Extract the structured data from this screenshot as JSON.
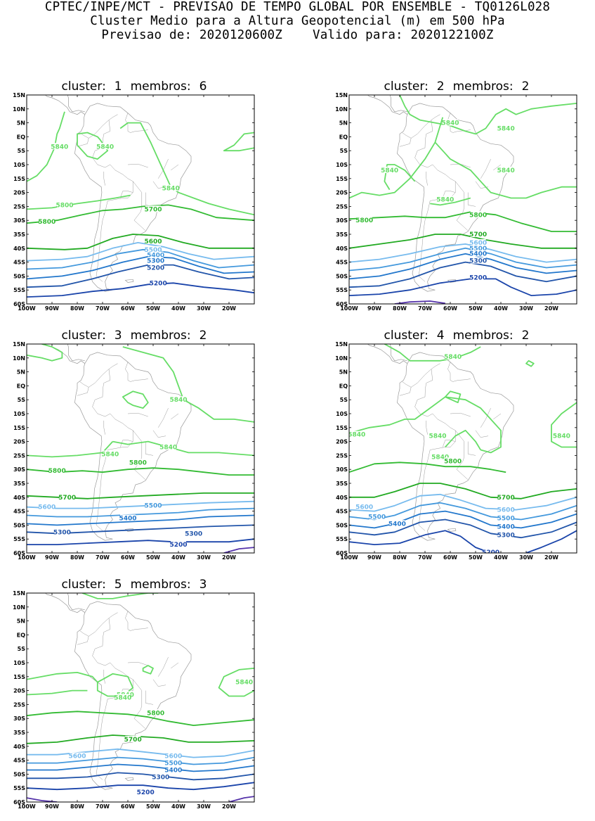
{
  "header": {
    "line1": "CPTEC/INPE/MCT - PREVISAO DE TEMPO GLOBAL POR ENSEMBLE - TQ0126L028",
    "line2": "Cluster Medio para a Altura Geopotencial (m) em 500 hPa",
    "line3": "Previsao de: 2020120600Z    Valido para: 2020122100Z"
  },
  "axes": {
    "lat_labels": [
      "15N",
      "10N",
      "5N",
      "EQ",
      "5S",
      "10S",
      "15S",
      "20S",
      "25S",
      "30S",
      "35S",
      "40S",
      "45S",
      "50S",
      "55S",
      "60S"
    ],
    "lon_labels": [
      "100W",
      "90W",
      "80W",
      "70W",
      "60W",
      "50W",
      "40W",
      "30W",
      "20W"
    ]
  },
  "colors": {
    "5840": "#66dd66",
    "5800": "#33bb33",
    "5700": "#22aa22",
    "5600": "#77bbee",
    "5500": "#4499dd",
    "5400": "#2277cc",
    "5300": "#2255aa",
    "5200": "#1a44aa",
    "low": "#5533aa",
    "coast": "#999999"
  },
  "panels": [
    {
      "cluster_label": "cluster:",
      "cluster": "1",
      "members_label": "membros:",
      "members": "6",
      "contour_labels": [
        "5840",
        "5840",
        "5840",
        "5840",
        "5800",
        "5800",
        "5700",
        "5600",
        "5500",
        "5400",
        "5300",
        "5200",
        "5200"
      ]
    },
    {
      "cluster_label": "cluster:",
      "cluster": "2",
      "members_label": "membros:",
      "members": "2",
      "contour_labels": [
        "5840",
        "5840",
        "5840",
        "5840",
        "5840",
        "5800",
        "5800",
        "5700",
        "5600",
        "5500",
        "5400",
        "5300",
        "5200"
      ]
    },
    {
      "cluster_label": "cluster:",
      "cluster": "3",
      "members_label": "membros:",
      "members": "2",
      "contour_labels": [
        "5840",
        "5840",
        "5840",
        "5800",
        "5800",
        "5700",
        "5600",
        "5500",
        "5400",
        "5300",
        "5300",
        "5200"
      ]
    },
    {
      "cluster_label": "cluster:",
      "cluster": "4",
      "members_label": "membros:",
      "members": "2",
      "contour_labels": [
        "5840",
        "5840",
        "5840",
        "5840",
        "5840",
        "5800",
        "5700",
        "5600",
        "5600",
        "5500",
        "5500",
        "5400",
        "5400",
        "5300",
        "5200"
      ]
    },
    {
      "cluster_label": "cluster:",
      "cluster": "5",
      "members_label": "membros:",
      "members": "3",
      "contour_labels": [
        "5840",
        "5840",
        "5840",
        "5800",
        "5700",
        "5600",
        "5600",
        "5500",
        "5400",
        "5300",
        "5200"
      ]
    }
  ]
}
